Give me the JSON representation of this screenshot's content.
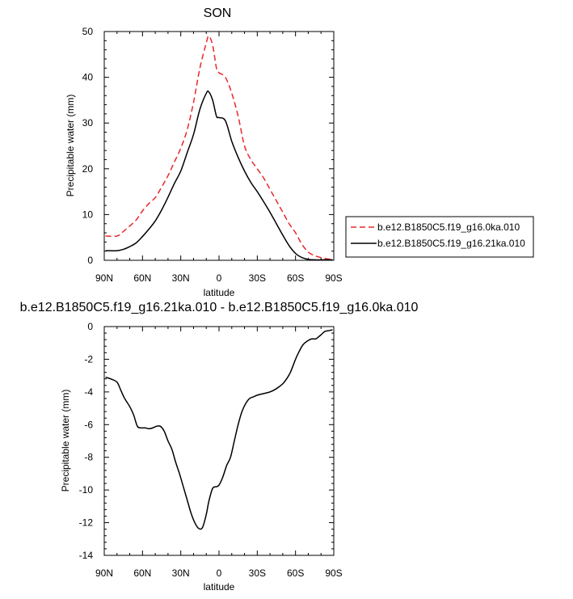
{
  "chart_data": [
    {
      "type": "line",
      "title": "SON",
      "xlabel": "latitude",
      "ylabel": "Precipitable water (mm)",
      "xlim": [
        90,
        -90
      ],
      "ylim": [
        0,
        50
      ],
      "xticks": [
        90,
        60,
        30,
        0,
        -30,
        -60,
        -90
      ],
      "xtick_labels": [
        "90N",
        "60N",
        "30N",
        "0",
        "30S",
        "60S",
        "90S"
      ],
      "yticks": [
        0,
        10,
        20,
        30,
        40,
        50
      ],
      "ytick_labels": [
        "0",
        "10",
        "20",
        "30",
        "40",
        "50"
      ],
      "grid": false,
      "legend_position": "right",
      "series": [
        {
          "name": "b.e12.B1850C5.f19_g16.0ka.010",
          "color": "#e8282d",
          "dash": "dashed",
          "x": [
            89,
            80,
            75,
            70,
            65,
            60,
            55,
            50,
            45,
            40,
            35,
            30,
            25,
            20,
            15,
            10,
            8,
            5,
            2,
            0,
            -5,
            -10,
            -15,
            -20,
            -25,
            -30,
            -35,
            -40,
            -45,
            -50,
            -55,
            -60,
            -65,
            -70,
            -75,
            -80,
            -85,
            -89
          ],
          "y": [
            5.3,
            5.3,
            6.3,
            7.5,
            8.8,
            10.8,
            12.4,
            13.7,
            16,
            18.5,
            21.5,
            24.5,
            28.5,
            34.5,
            42,
            47.5,
            49,
            47,
            42,
            41,
            40,
            36.5,
            31.5,
            25,
            22,
            20,
            18,
            15.5,
            13,
            10.5,
            8,
            6,
            3.5,
            1.8,
            1,
            0.6,
            0.3,
            0.2
          ]
        },
        {
          "name": "b.e12.B1850C5.f19_g16.21ka.010",
          "color": "#000000",
          "dash": "solid",
          "x": [
            89,
            80,
            75,
            70,
            65,
            60,
            55,
            50,
            45,
            40,
            35,
            30,
            25,
            20,
            15,
            10,
            8,
            5,
            2,
            0,
            -5,
            -10,
            -15,
            -20,
            -25,
            -30,
            -35,
            -40,
            -45,
            -50,
            -55,
            -60,
            -65,
            -70,
            -75,
            -80,
            -85,
            -89
          ],
          "y": [
            2.1,
            2.1,
            2.4,
            3,
            3.8,
            5.2,
            6.8,
            8.6,
            11,
            13.8,
            16.8,
            19.5,
            23.5,
            27.5,
            33,
            36.5,
            36.8,
            35,
            31.5,
            31.2,
            30.5,
            26,
            22.5,
            19.5,
            17,
            15,
            12.8,
            10.5,
            8,
            5.5,
            3.2,
            1.5,
            0.6,
            0.2,
            0.1,
            0.1,
            0.1,
            0.1
          ]
        }
      ]
    },
    {
      "type": "line",
      "title": "b.e12.B1850C5.f19_g16.21ka.010 - b.e12.B1850C5.f19_g16.0ka.010",
      "xlabel": "latitude",
      "ylabel": "Precipitable water (mm)",
      "xlim": [
        90,
        -90
      ],
      "ylim": [
        -14,
        0
      ],
      "xticks": [
        90,
        60,
        30,
        0,
        -30,
        -60,
        -90
      ],
      "xtick_labels": [
        "90N",
        "60N",
        "30N",
        "0",
        "30S",
        "60S",
        "90S"
      ],
      "yticks": [
        -14,
        -12,
        -10,
        -8,
        -6,
        -4,
        -2,
        0
      ],
      "ytick_labels": [
        "-14",
        "-12",
        "-10",
        "-8",
        "-6",
        "-4",
        "-2",
        "0"
      ],
      "grid": false,
      "series": [
        {
          "color": "#000000",
          "dash": "solid",
          "x": [
            89,
            85,
            80,
            77,
            74,
            70,
            67,
            64,
            61,
            58,
            55,
            52,
            49,
            46,
            43,
            40,
            37,
            34,
            31,
            28,
            25,
            22,
            19,
            16,
            13,
            10,
            8,
            5,
            2,
            0,
            -3,
            -6,
            -9,
            -12,
            -15,
            -18,
            -21,
            -24,
            -27,
            -30,
            -35,
            -40,
            -45,
            -50,
            -53,
            -56,
            -60,
            -63,
            -66,
            -70,
            -73,
            -76,
            -80,
            -83,
            -86,
            -89
          ],
          "y": [
            -3.1,
            -3.2,
            -3.4,
            -3.9,
            -4.4,
            -4.9,
            -5.4,
            -6.1,
            -6.2,
            -6.2,
            -6.25,
            -6.2,
            -6.1,
            -6.1,
            -6.4,
            -7,
            -7.5,
            -8.3,
            -9,
            -9.8,
            -10.6,
            -11.4,
            -12,
            -12.35,
            -12.3,
            -11.5,
            -10.7,
            -9.9,
            -9.8,
            -9.7,
            -9.2,
            -8.5,
            -8,
            -7,
            -6,
            -5.2,
            -4.7,
            -4.4,
            -4.3,
            -4.2,
            -4.1,
            -4.0,
            -3.8,
            -3.5,
            -3.2,
            -2.8,
            -2.0,
            -1.5,
            -1.1,
            -0.85,
            -0.75,
            -0.75,
            -0.5,
            -0.3,
            -0.25,
            -0.2
          ]
        }
      ]
    }
  ]
}
